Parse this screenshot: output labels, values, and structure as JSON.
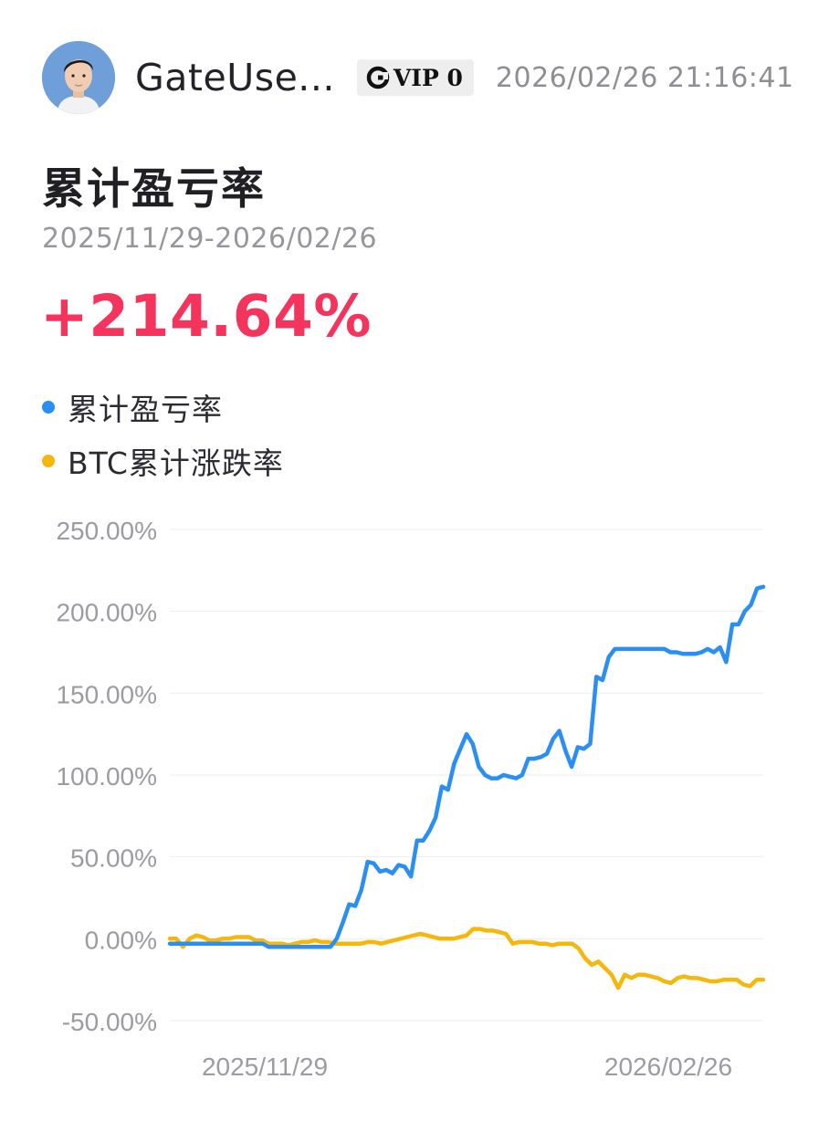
{
  "header": {
    "username": "GateUse...",
    "vip_label": "VIP 0",
    "timestamp": "2026/02/26 21:16:41"
  },
  "summary": {
    "title": "累计盈亏率",
    "date_range": "2025/11/29-2026/02/26",
    "total_return": "+214.64%"
  },
  "colors": {
    "strategy": "#2b8ef3",
    "btc": "#f6b70c",
    "positive": "#f5345e",
    "grid": "#eeeeee",
    "axis_text": "#9b9ba1"
  },
  "chart_data": {
    "type": "line",
    "title": "",
    "xlabel": "",
    "ylabel": "",
    "ylim": [
      -50,
      250
    ],
    "yticks": [
      250,
      200,
      150,
      100,
      50,
      0,
      -50
    ],
    "ytick_labels": [
      "250.00%",
      "200.00%",
      "150.00%",
      "100.00%",
      "50.00%",
      "0.00%",
      "-50.00%"
    ],
    "xtick_labels": [
      "2025/11/29",
      "2026/02/26"
    ],
    "grid": true,
    "legend_position": "top-left",
    "series": [
      {
        "name": "累计盈亏率",
        "color": "#2b8ef3",
        "values": [
          -3,
          -3,
          -3,
          -3,
          -3,
          -3,
          -3,
          -3,
          -3,
          -3,
          -3,
          -3,
          -3,
          -3,
          -3,
          -3,
          -5,
          -5,
          -5,
          -5,
          -5,
          -5,
          -5,
          -5,
          -5,
          -5,
          -5,
          0,
          10,
          21,
          20,
          30,
          47,
          46,
          41,
          42,
          40,
          45,
          44,
          38,
          60,
          60,
          66,
          74,
          93,
          91,
          107,
          116,
          125,
          119,
          105,
          100,
          98,
          98,
          100,
          99,
          98,
          100,
          110,
          110,
          111,
          113,
          122,
          127,
          115,
          105,
          117,
          116,
          119,
          160,
          158,
          172,
          177,
          177,
          177,
          177,
          177,
          177,
          177,
          177,
          177,
          175,
          175,
          174,
          174,
          174,
          175,
          177,
          175,
          178,
          169,
          192,
          192,
          200,
          204,
          214,
          215
        ]
      },
      {
        "name": "BTC累计涨跌率",
        "color": "#f6b70c",
        "values": [
          0,
          0,
          -5,
          0,
          2,
          1,
          -1,
          -1,
          0,
          0,
          1,
          1,
          1,
          -1,
          -1,
          -3,
          -3,
          -3,
          -4,
          -3,
          -2,
          -2,
          -1,
          -2,
          -2,
          -3,
          -3,
          -3,
          -3,
          -3,
          -2,
          -2,
          -3,
          -2,
          -1,
          0,
          1,
          2,
          3,
          2,
          1,
          0,
          0,
          0,
          1,
          2,
          6,
          6,
          5,
          5,
          4,
          3,
          -3,
          -2,
          -2,
          -2,
          -3,
          -3,
          -4,
          -3,
          -3,
          -3,
          -6,
          -12,
          -16,
          -14,
          -18,
          -22,
          -30,
          -22,
          -24,
          -22,
          -22,
          -23,
          -24,
          -26,
          -27,
          -24,
          -23,
          -24,
          -24,
          -25,
          -26,
          -26,
          -25,
          -25,
          -25,
          -28,
          -29,
          -25,
          -25
        ]
      }
    ]
  }
}
